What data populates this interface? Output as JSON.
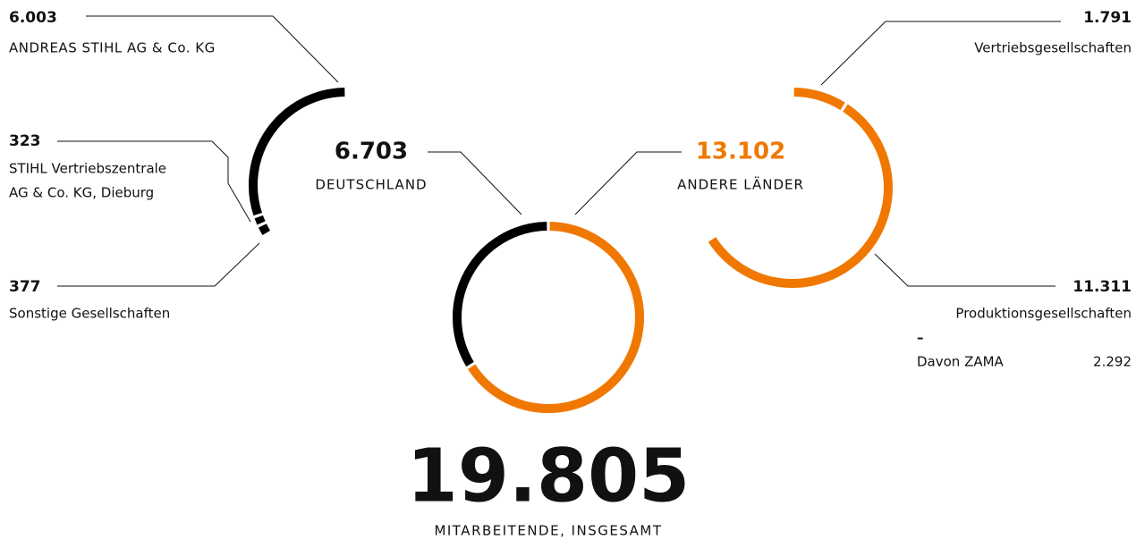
{
  "total": {
    "value": 19805,
    "label": "19.805"
  },
  "total_caption": "MITARBEITENDE, INSGESAMT",
  "overview": {
    "type": "donut",
    "segments": [
      {
        "name": "DEUTSCHLAND",
        "value": 6703,
        "label": "6.703",
        "color": "#000000",
        "direction": "counterclockwise"
      },
      {
        "name": "ANDERE LÄNDER",
        "value": 13102,
        "label": "13.102",
        "color": "#f07800",
        "direction": "clockwise"
      }
    ]
  },
  "germany": {
    "type": "arc",
    "direction": "counterclockwise",
    "color": "#000000",
    "segments": [
      {
        "name": "ANDREAS STIHL AG & Co. KG",
        "value": 6003,
        "label": "6.003"
      },
      {
        "name": [
          "STIHL Vertriebszentrale",
          "AG & Co. KG, Dieburg"
        ],
        "value": 323,
        "label": "323"
      },
      {
        "name": "Sonstige Gesellschaften",
        "value": 377,
        "label": "377"
      }
    ]
  },
  "abroad": {
    "type": "arc",
    "direction": "clockwise",
    "color": "#f07800",
    "segments": [
      {
        "name": "Vertriebsgesellschaften",
        "value": 1791,
        "label": "1.791"
      },
      {
        "name": "Produktionsgesellschaften",
        "value": 11311,
        "label": "11.311",
        "separator": "–",
        "sub_name": "Davon ZAMA",
        "sub_value": {
          "value": 2292,
          "label": "2.292"
        }
      }
    ]
  }
}
